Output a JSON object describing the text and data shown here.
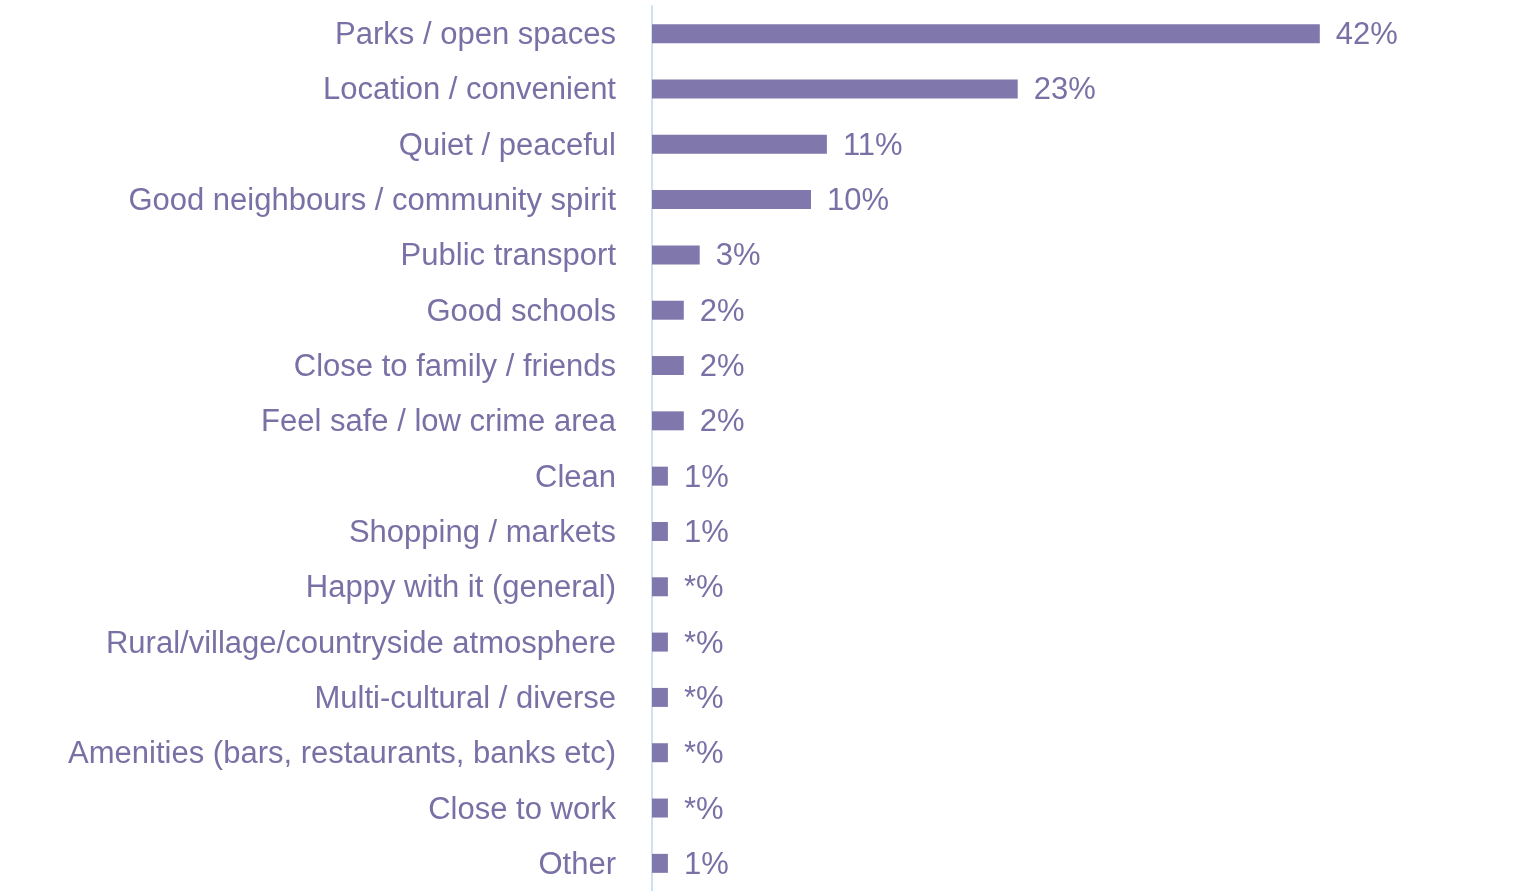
{
  "chart_data": {
    "type": "bar",
    "orientation": "horizontal",
    "categories": [
      "Parks / open spaces",
      "Location / convenient",
      "Quiet / peaceful",
      "Good neighbours / community spirit",
      "Public transport",
      "Good schools",
      "Close to family / friends",
      "Feel safe / low crime area",
      "Clean",
      "Shopping / markets",
      "Happy with it (general)",
      "Rural/village/countryside atmosphere",
      "Multi-cultural / diverse",
      "Amenities (bars, restaurants, banks etc)",
      "Close to work",
      "Other"
    ],
    "values": [
      42,
      23,
      11,
      10,
      3,
      2,
      2,
      2,
      1,
      1,
      1,
      1,
      1,
      1,
      1,
      1
    ],
    "value_labels": [
      "42%",
      "23%",
      "11%",
      "10%",
      "3%",
      "2%",
      "2%",
      "2%",
      "1%",
      "1%",
      "*%",
      "*%",
      "*%",
      "*%",
      "*%",
      "1%"
    ],
    "color": "#8078ac",
    "tick_labels": "y"
  }
}
